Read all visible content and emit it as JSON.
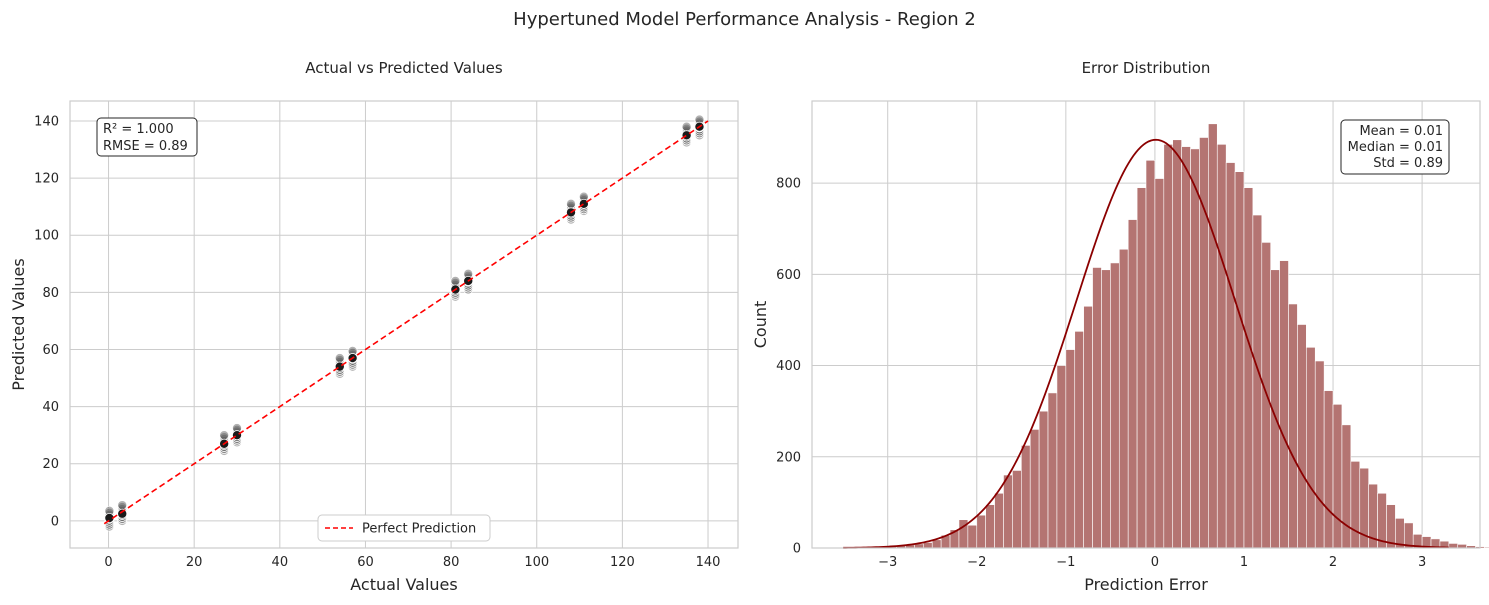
{
  "figure": {
    "suptitle": "Hypertuned Model Performance Analysis - Region 2"
  },
  "chart_data": [
    {
      "type": "scatter",
      "title": "Actual vs Predicted Values",
      "xlabel": "Actual Values",
      "ylabel": "Predicted Values",
      "xlim": [
        -9,
        147
      ],
      "ylim": [
        -9.5,
        147
      ],
      "xticks": [
        0,
        20,
        40,
        60,
        80,
        100,
        120,
        140
      ],
      "yticks": [
        0,
        20,
        40,
        60,
        80,
        100,
        120,
        140
      ],
      "grid": true,
      "stats_box": [
        "R² = 1.000",
        "RMSE = 0.89"
      ],
      "stats_box_position": "top-left",
      "legend": {
        "label": "Perfect Prediction",
        "placement": "bottom-center"
      },
      "reference_line": {
        "name": "Perfect Prediction",
        "x": [
          -1,
          140
        ],
        "y": [
          -1,
          140
        ],
        "color": "#ff0000",
        "style": "dashed"
      },
      "point_color": "#1a1a1a",
      "clusters": [
        {
          "x": 0.2,
          "y_min": -2,
          "y_max": 3.5,
          "y_center": 1.0
        },
        {
          "x": 3.2,
          "y_min": 0,
          "y_max": 5.5,
          "y_center": 2.5
        },
        {
          "x": 27.0,
          "y_min": 24.5,
          "y_max": 30.0,
          "y_center": 27.0
        },
        {
          "x": 30.0,
          "y_min": 27.5,
          "y_max": 32.5,
          "y_center": 30.0
        },
        {
          "x": 54.0,
          "y_min": 51.5,
          "y_max": 57.0,
          "y_center": 54.0
        },
        {
          "x": 57.0,
          "y_min": 54.0,
          "y_max": 59.5,
          "y_center": 57.0
        },
        {
          "x": 81.0,
          "y_min": 78.5,
          "y_max": 84.0,
          "y_center": 81.0
        },
        {
          "x": 84.0,
          "y_min": 81.0,
          "y_max": 86.5,
          "y_center": 84.0
        },
        {
          "x": 108.0,
          "y_min": 105.5,
          "y_max": 111.0,
          "y_center": 108.0
        },
        {
          "x": 111.0,
          "y_min": 108.5,
          "y_max": 113.5,
          "y_center": 111.0
        },
        {
          "x": 135.0,
          "y_min": 132.5,
          "y_max": 138.0,
          "y_center": 135.0
        },
        {
          "x": 138.0,
          "y_min": 135.0,
          "y_max": 140.5,
          "y_center": 138.0
        }
      ]
    },
    {
      "type": "histogram",
      "title": "Error Distribution",
      "xlabel": "Prediction Error",
      "ylabel": "Count",
      "xlim": [
        -3.85,
        3.65
      ],
      "ylim": [
        0,
        980
      ],
      "xticks": [
        -3,
        -2,
        -1,
        0,
        1,
        2,
        3
      ],
      "xticklabels": [
        "−3",
        "−2",
        "−1",
        "0",
        "1",
        "2",
        "3"
      ],
      "yticks": [
        0,
        200,
        400,
        600,
        800
      ],
      "grid": true,
      "stats_box": [
        "Mean = 0.01",
        "Median = 0.01",
        "Std = 0.89"
      ],
      "stats_box_position": "top-right",
      "bar_color": "#b47472",
      "kde_color": "#8b0000",
      "bin_start": -3.5,
      "bin_width": 0.1,
      "counts": [
        0,
        0,
        1,
        1,
        2,
        3,
        5,
        7,
        9,
        12,
        18,
        28,
        40,
        62,
        50,
        72,
        95,
        120,
        160,
        170,
        225,
        260,
        300,
        340,
        400,
        435,
        475,
        530,
        615,
        610,
        625,
        655,
        720,
        790,
        850,
        810,
        885,
        895,
        880,
        875,
        900,
        930,
        885,
        845,
        825,
        790,
        730,
        670,
        610,
        630,
        535,
        490,
        440,
        410,
        345,
        315,
        270,
        190,
        175,
        140,
        120,
        95,
        65,
        55,
        30,
        25,
        20,
        15,
        10,
        8,
        5,
        3,
        2,
        1,
        1
      ],
      "kde": {
        "mean": 0.01,
        "std": 0.89,
        "peak": 895,
        "x_min": -3.5,
        "x_max": 3.3
      }
    }
  ]
}
